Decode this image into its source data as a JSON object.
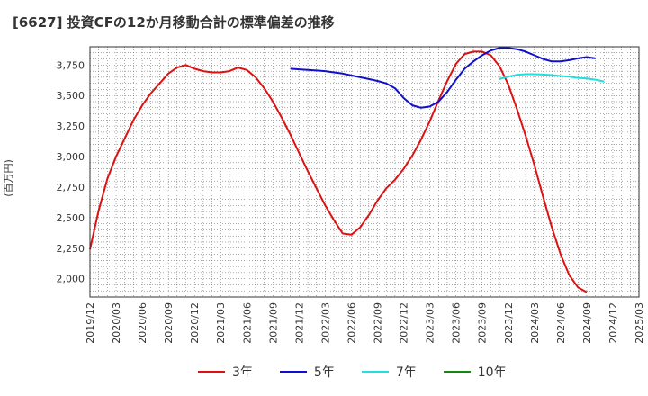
{
  "title": "[6627]  投資CFの12か月移動合計の標準偏差の推移",
  "chart_data": {
    "type": "line",
    "title": "[6627]  投資CFの12か月移動合計の標準偏差の推移",
    "ylabel": "(百万円)",
    "xlabel": "",
    "ylim": [
      1850,
      3900
    ],
    "yticks": [
      2000,
      2250,
      2500,
      2750,
      3000,
      3250,
      3500,
      3750
    ],
    "ytick_labels": [
      "2,000",
      "2,250",
      "2,500",
      "2,750",
      "3,000",
      "3,250",
      "3,500",
      "3,750"
    ],
    "xtick_labels": [
      "2019/12",
      "2020/03",
      "2020/06",
      "2020/09",
      "2020/12",
      "2021/03",
      "2021/06",
      "2021/09",
      "2021/12",
      "2022/03",
      "2022/06",
      "2022/09",
      "2022/12",
      "2023/03",
      "2023/06",
      "2023/09",
      "2023/12",
      "2024/03",
      "2024/06",
      "2024/09",
      "2024/12",
      "2025/03"
    ],
    "x_start": "2019/12",
    "x_end": "2025/03",
    "grid": true,
    "legend_position": "bottom",
    "series": [
      {
        "name": "3年",
        "color": "#dd1111",
        "start": "2019/12",
        "values": [
          2240,
          2560,
          2820,
          3000,
          3150,
          3300,
          3420,
          3520,
          3600,
          3680,
          3730,
          3750,
          3720,
          3700,
          3690,
          3690,
          3700,
          3730,
          3710,
          3650,
          3560,
          3450,
          3320,
          3180,
          3030,
          2880,
          2740,
          2600,
          2480,
          2370,
          2360,
          2420,
          2520,
          2640,
          2740,
          2810,
          2900,
          3010,
          3140,
          3290,
          3460,
          3620,
          3760,
          3840,
          3860,
          3860,
          3830,
          3740,
          3590,
          3390,
          3170,
          2930,
          2670,
          2420,
          2200,
          2030,
          1930,
          1890
        ]
      },
      {
        "name": "5年",
        "color": "#1010cc",
        "start": "2021/11",
        "values": [
          3720,
          3715,
          3710,
          3705,
          3700,
          3690,
          3680,
          3665,
          3650,
          3635,
          3620,
          3600,
          3560,
          3480,
          3420,
          3400,
          3410,
          3450,
          3530,
          3630,
          3720,
          3780,
          3830,
          3870,
          3890,
          3890,
          3880,
          3860,
          3830,
          3800,
          3780,
          3780,
          3790,
          3805,
          3815,
          3805
        ]
      },
      {
        "name": "7年",
        "color": "#22dddd",
        "start": "2023/11",
        "values": [
          3635,
          3655,
          3670,
          3675,
          3675,
          3672,
          3668,
          3660,
          3655,
          3645,
          3640,
          3630,
          3615
        ]
      },
      {
        "name": "10年",
        "color": "#118811",
        "start": "2024/12",
        "values": []
      }
    ]
  }
}
